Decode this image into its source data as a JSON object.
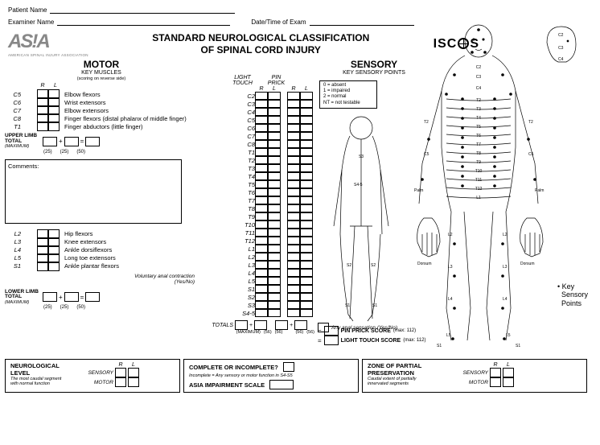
{
  "header": {
    "patient": "Patient Name",
    "examiner": "Examiner Name",
    "datetime": "Date/Time of Exam"
  },
  "logo": {
    "asia": "AS!A",
    "asiasub": "AMERICAN SPINAL INJURY ASSOCIATION",
    "title1": "STANDARD NEUROLOGICAL CLASSIFICATION",
    "title2": "OF SPINAL CORD INJURY",
    "iscos": "ISC S"
  },
  "motor": {
    "title": "MOTOR",
    "sub": "KEY MUSCLES",
    "note": "(scoring on reverse side)",
    "R": "R",
    "L": "L",
    "upper": [
      {
        "seg": "C5",
        "mus": "Elbow flexors"
      },
      {
        "seg": "C6",
        "mus": "Wrist extensors"
      },
      {
        "seg": "C7",
        "mus": "Elbow extensors"
      },
      {
        "seg": "C8",
        "mus": "Finger flexors (distal phalanx of middle finger)"
      },
      {
        "seg": "T1",
        "mus": "Finger abductors (little finger)"
      }
    ],
    "upperTotal": "UPPER LIMB\nTOTAL",
    "max": "(MAXIMUM)",
    "v25": "(25)",
    "v50": "(50)",
    "lower": [
      {
        "seg": "L2",
        "mus": "Hip flexors"
      },
      {
        "seg": "L3",
        "mus": "Knee extensors"
      },
      {
        "seg": "L4",
        "mus": "Ankle dorsiflexors"
      },
      {
        "seg": "L5",
        "mus": "Long toe extensors"
      },
      {
        "seg": "S1",
        "mus": "Ankle plantar flexors"
      }
    ],
    "lowerTotal": "LOWER LIMB\nTOTAL",
    "vac": "Voluntary anal contraction\n(Yes/No)",
    "totals": "TOTALS",
    "v56": "(56)",
    "comments": "Comments:"
  },
  "sensory": {
    "title": "SENSORY",
    "sub": "KEY SENSORY POINTS",
    "lt": "LIGHT\nTOUCH",
    "pp": "PIN\nPRICK",
    "segs": [
      "C2",
      "C3",
      "C4",
      "C5",
      "C6",
      "C7",
      "C8",
      "T1",
      "T2",
      "T3",
      "T4",
      "T5",
      "T6",
      "T7",
      "T8",
      "T9",
      "T10",
      "T11",
      "T12",
      "L1",
      "L2",
      "L3",
      "L4",
      "L5",
      "S1",
      "S2",
      "S3",
      "S4-5"
    ],
    "legend": [
      "0 = absent",
      "1 = impaired",
      "2 = normal",
      "NT = not testable"
    ],
    "aas": "Any anal sensation (Yes/No)",
    "pps": "PIN PRICK SCORE",
    "lts": "LIGHT TOUCH SCORE",
    "m112": "(max: 112)",
    "key": "Key\nSensory\nPoints"
  },
  "bottom": {
    "nl": "NEUROLOGICAL\nLEVEL",
    "nlsub": "The most caudal segment\nwith normal function",
    "sens": "SENSORY",
    "mot": "MOTOR",
    "coi": "COMPLETE OR INCOMPLETE?",
    "coisub": "Incomplete = Any sensory or motor function in S4-S5",
    "ais": "ASIA IMPAIRMENT SCALE",
    "zpp": "ZONE OF PARTIAL\nPRESERVATION",
    "zppsub": "Caudal extent of partially\ninnervated segments"
  }
}
